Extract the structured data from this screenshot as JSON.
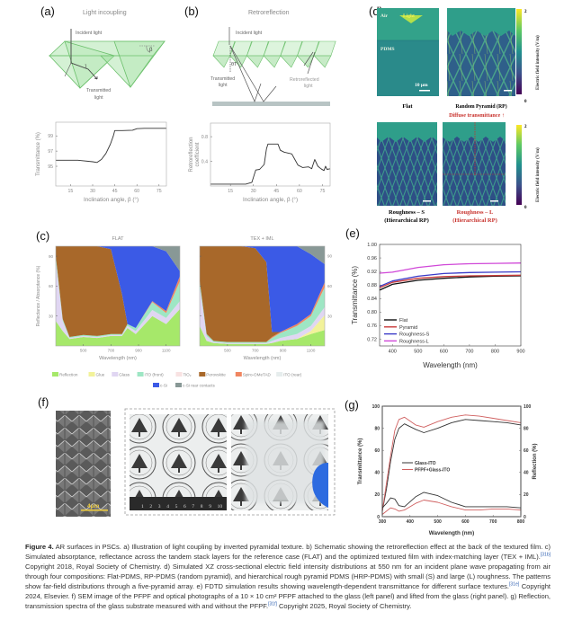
{
  "panels": {
    "a": {
      "label": "(a)",
      "title": "Light incoupling",
      "incident": "Incident light",
      "transmitted1": "Transmitted",
      "transmitted2": "light",
      "beta": "β"
    },
    "b": {
      "label": "(b)",
      "title": "Retroreflection",
      "incident": "Incident light",
      "transmitted1": "Transmitted",
      "transmitted2": "light",
      "retro1": "Retroreflected",
      "retro2": "light",
      "theta": "θT"
    },
    "c": {
      "label": "(c)"
    },
    "d": {
      "label": "(d)",
      "air": "Air",
      "light": "Light",
      "pdms": "PDMS",
      "scale": "10 μm",
      "flat": "Flat",
      "rp": "Random Pyramid (RP)",
      "diffuse": "Diffuse transmittance ↑",
      "rs1": "Roughness – S",
      "rs2": "(Hierarchical RP)",
      "rl1": "Roughness – L",
      "rl2": "(Hierarchical RP)",
      "colorbar_label": "Electric field intensity (V/m)",
      "cb_max": "2",
      "cb_min": "0",
      "colors": {
        "highlight": "#c8322d"
      }
    },
    "e": {
      "label": "(e)"
    },
    "f": {
      "label": "(f)",
      "sem_scale": "4μm",
      "ruler": [
        "1",
        "2",
        "3",
        "4",
        "5",
        "6",
        "7",
        "8",
        "9",
        "10"
      ]
    },
    "g": {
      "label": "(g)"
    }
  },
  "chart_data": [
    {
      "id": "a",
      "type": "line",
      "xlabel": "Inclination angle, β (°)",
      "ylabel": "Transmittance (%)",
      "xlim": [
        5,
        80
      ],
      "ylim": [
        92.4,
        100.8
      ],
      "xticks": [
        15,
        30,
        45,
        60,
        75
      ],
      "yticks": [
        95,
        97,
        99
      ],
      "grid": false,
      "series": [
        {
          "color": "#333333",
          "x": [
            5,
            20,
            30,
            33,
            36,
            39,
            42,
            44,
            45,
            50,
            57,
            60,
            65,
            80
          ],
          "y": [
            95.8,
            95.8,
            95.6,
            95.5,
            95.9,
            96.7,
            97.9,
            99.0,
            99.7,
            99.7,
            99.75,
            99.95,
            100.0,
            100.0
          ]
        }
      ]
    },
    {
      "id": "b",
      "type": "line",
      "xlabel": "Inclination angle, β (°)",
      "ylabel": "Retroreflection coefficient",
      "xlim": [
        2,
        80
      ],
      "ylim": [
        0,
        1.02
      ],
      "xticks": [
        15,
        30,
        45,
        60,
        75
      ],
      "yticks": [
        0.4,
        0.8
      ],
      "grid": false,
      "series": [
        {
          "color": "#333333",
          "x": [
            2,
            25,
            29,
            30.5,
            31.5,
            34,
            37,
            38.5,
            39.5,
            46,
            47.5,
            50,
            55,
            57,
            59,
            62,
            66,
            68,
            70,
            72,
            74,
            76,
            77,
            78,
            80
          ],
          "y": [
            0.03,
            0.03,
            0.06,
            0.18,
            0.26,
            0.27,
            0.35,
            0.6,
            0.68,
            0.68,
            0.58,
            0.55,
            0.52,
            0.43,
            0.34,
            0.3,
            0.31,
            0.28,
            0.43,
            0.32,
            0.28,
            0.25,
            0.32,
            0.27,
            0.28
          ]
        }
      ]
    },
    {
      "id": "c1",
      "type": "area",
      "title": "FLAT",
      "xlabel": "Wavelength (nm)",
      "ylabel": "Reflectance / Absorptance (%)",
      "xlim": [
        300,
        1200
      ],
      "ylim": [
        0,
        100
      ],
      "xticks": [
        500,
        700,
        900,
        1100
      ],
      "yticks": [
        30,
        60,
        90
      ],
      "stacked": true,
      "x": [
        300,
        350,
        400,
        500,
        600,
        700,
        780,
        820,
        880,
        1000,
        1100,
        1200
      ],
      "series": [
        {
          "name": "Reflection",
          "values": [
            25,
            15,
            7,
            9,
            8,
            10,
            10,
            18,
            12,
            30,
            22,
            37
          ]
        },
        {
          "name": "Glass",
          "values": [
            60,
            10,
            1,
            1,
            1,
            1,
            1,
            2,
            3,
            6,
            6,
            8
          ]
        },
        {
          "name": "ITO (front)",
          "values": [
            5,
            2,
            1,
            1,
            1,
            1,
            1,
            2,
            3,
            8,
            5,
            20
          ]
        },
        {
          "name": "Spiro-OMeTAD",
          "values": [
            0,
            0,
            0,
            0,
            0,
            0,
            0,
            0,
            0,
            1,
            2,
            5
          ]
        },
        {
          "name": "Perovskite",
          "values": [
            10,
            73,
            91,
            89,
            90,
            85,
            40,
            0,
            0,
            0,
            0,
            0
          ]
        },
        {
          "name": "c-Si",
          "values": [
            0,
            0,
            0,
            0,
            0,
            3,
            48,
            78,
            82,
            55,
            60,
            5
          ]
        },
        {
          "name": "c-Si rear contacts",
          "values": [
            0,
            0,
            0,
            0,
            0,
            0,
            0,
            0,
            0,
            0,
            5,
            25
          ]
        }
      ]
    },
    {
      "id": "c2",
      "type": "area",
      "title": "TEX + IML",
      "xlabel": "Wavelength (nm)",
      "ylabel": "",
      "xlim": [
        300,
        1200
      ],
      "ylim": [
        0,
        100
      ],
      "xticks": [
        500,
        700,
        900,
        1100
      ],
      "yticks": [
        30,
        60,
        90
      ],
      "stacked": true,
      "x": [
        300,
        350,
        400,
        500,
        600,
        700,
        780,
        820,
        880,
        1000,
        1100,
        1200
      ],
      "series": [
        {
          "name": "Reflection",
          "values": [
            20,
            5,
            3,
            2,
            2,
            2,
            2,
            3,
            5,
            7,
            12,
            16
          ]
        },
        {
          "name": "Glue",
          "values": [
            0,
            0,
            0,
            0,
            0,
            0,
            0,
            0,
            0,
            0,
            3,
            15
          ]
        },
        {
          "name": "Glass",
          "values": [
            40,
            5,
            1,
            1,
            1,
            1,
            1,
            2,
            3,
            5,
            5,
            8
          ]
        },
        {
          "name": "ITO (front)",
          "values": [
            5,
            2,
            1,
            1,
            1,
            1,
            1,
            3,
            5,
            8,
            10,
            20
          ]
        },
        {
          "name": "Spiro-OMeTAD",
          "values": [
            0,
            0,
            0,
            0,
            0,
            0,
            0,
            1,
            1,
            2,
            2,
            5
          ]
        },
        {
          "name": "Perovskite",
          "values": [
            35,
            88,
            95,
            96,
            96,
            94,
            80,
            5,
            0,
            0,
            0,
            0
          ]
        },
        {
          "name": "c-Si",
          "values": [
            0,
            0,
            0,
            0,
            0,
            2,
            16,
            86,
            86,
            78,
            60,
            18
          ]
        },
        {
          "name": "c-Si rear contacts",
          "values": [
            0,
            0,
            0,
            0,
            0,
            0,
            0,
            0,
            0,
            0,
            8,
            18
          ]
        }
      ]
    },
    {
      "id": "e",
      "type": "line",
      "xlabel": "Wavelength (nm)",
      "ylabel": "Transmittance (%)",
      "xlim": [
        350,
        900
      ],
      "ylim": [
        0.7,
        1.0
      ],
      "xticks": [
        400,
        500,
        600,
        700,
        800,
        900
      ],
      "yticks": [
        0.72,
        0.76,
        0.8,
        0.84,
        0.88,
        0.92,
        0.96,
        1.0
      ],
      "grid": false,
      "legend": "bottom-left",
      "x": [
        350,
        400,
        500,
        600,
        700,
        800,
        900
      ],
      "series": [
        {
          "name": "Flat",
          "color": "#111111",
          "values": [
            0.865,
            0.882,
            0.894,
            0.9,
            0.904,
            0.906,
            0.907
          ]
        },
        {
          "name": "Pyramid",
          "color": "#c83a3a",
          "values": [
            0.872,
            0.888,
            0.9,
            0.905,
            0.907,
            0.908,
            0.909
          ]
        },
        {
          "name": "Roughness-S",
          "color": "#3a3ac8",
          "values": [
            0.876,
            0.892,
            0.906,
            0.914,
            0.917,
            0.918,
            0.919
          ]
        },
        {
          "name": "Roughness-L",
          "color": "#d048d8",
          "values": [
            0.915,
            0.918,
            0.932,
            0.94,
            0.943,
            0.944,
            0.945
          ]
        }
      ]
    },
    {
      "id": "g",
      "type": "line",
      "xlabel": "Wavelength (nm)",
      "ylabel": "Transmittance (%)",
      "ylabel_right": "Reflection (%)",
      "xlim": [
        300,
        800
      ],
      "ylim": [
        0,
        100
      ],
      "xticks": [
        300,
        400,
        500,
        600,
        700,
        800
      ],
      "yticks": [
        0,
        20,
        40,
        60,
        80,
        100
      ],
      "grid": false,
      "legend": "center-left",
      "x": [
        300,
        315,
        330,
        345,
        360,
        380,
        420,
        450,
        500,
        550,
        600,
        650,
        700,
        750,
        800
      ],
      "series": [
        {
          "name": "Glass-ITO",
          "quantity": "Transmittance",
          "color": "#333333",
          "values": [
            5,
            25,
            50,
            70,
            80,
            84,
            79,
            76,
            80,
            85,
            88,
            87,
            86,
            85,
            83
          ]
        },
        {
          "name": "PFPF+Glass-ITO",
          "quantity": "Transmittance",
          "color": "#d06060",
          "values": [
            5,
            30,
            55,
            78,
            88,
            90,
            83,
            81,
            86,
            90,
            92,
            91,
            89,
            87,
            85
          ]
        },
        {
          "name": "Glass-ITO",
          "quantity": "Reflection",
          "color": "#333333",
          "values": [
            8,
            12,
            17,
            16,
            10,
            9,
            18,
            22,
            19,
            13,
            9,
            9,
            9,
            9,
            8
          ]
        },
        {
          "name": "PFPF+Glass-ITO",
          "quantity": "Reflection",
          "color": "#d06060",
          "values": [
            2,
            5,
            8,
            7,
            5,
            6,
            12,
            15,
            13,
            9,
            6,
            6,
            7,
            7,
            6
          ]
        }
      ]
    }
  ],
  "c_legend": [
    {
      "name": "Reflection",
      "color": "#a6e86a"
    },
    {
      "name": "Glue",
      "color": "#f2f29a"
    },
    {
      "name": "Glass",
      "color": "#e0d6f2"
    },
    {
      "name": "ITO (front)",
      "color": "#9ee6c4"
    },
    {
      "name": "TiO₂",
      "color": "#f8e2e2"
    },
    {
      "name": "Perovskite",
      "color": "#a8682a"
    },
    {
      "name": "Spiro-OMeTAD",
      "color": "#f08660"
    },
    {
      "name": "ITO (rear)",
      "color": "#e6eded"
    },
    {
      "name": "c-Si",
      "color": "#3b5ae6"
    },
    {
      "name": "c-Si rear contacts",
      "color": "#889896"
    }
  ],
  "caption": {
    "label": "Figure 4.",
    "t1": " AR surfaces in PSCs. a) Illustration of light coupling by inverted pyramidal texture. b) Schematic showing the retroreflection effect at the back of the textured film. c) Simulated absorptance, reflectance across the tandem stack layers for the reference case (FLAT) and the optimized textured film with index-matching layer (TEX + IML).",
    "r1": "[31b]",
    "t2": " Copyright 2018, Royal Society of Chemistry. d) Simulated XZ cross-sectional electric field intensity distributions at 550 nm for an incident plane wave propagating from air through four compositions: Flat-PDMS, RP-PDMS (random pyramid), and hierarchical rough pyramid PDMS (HRP-PDMS) with small (S) and large (L) roughness. The patterns show far-field distributions through a five-pyramid array. e) FDTD simulation results showing wavelength-dependent transmittance for different surface textures.",
    "r2": "[31e]",
    "t3": " Copyright 2024, Elsevier. f) SEM image of the PFPF and optical photographs of a 10 × 10 cm² PFPF attached to the glass (left panel) and lifted from the glass (right panel). g) Reflection, transmission spectra of the glass substrate measured with and without the PFPF.",
    "r3": "[31f]",
    "t4": " Copyright 2025, Royal Society of Chemistry."
  }
}
